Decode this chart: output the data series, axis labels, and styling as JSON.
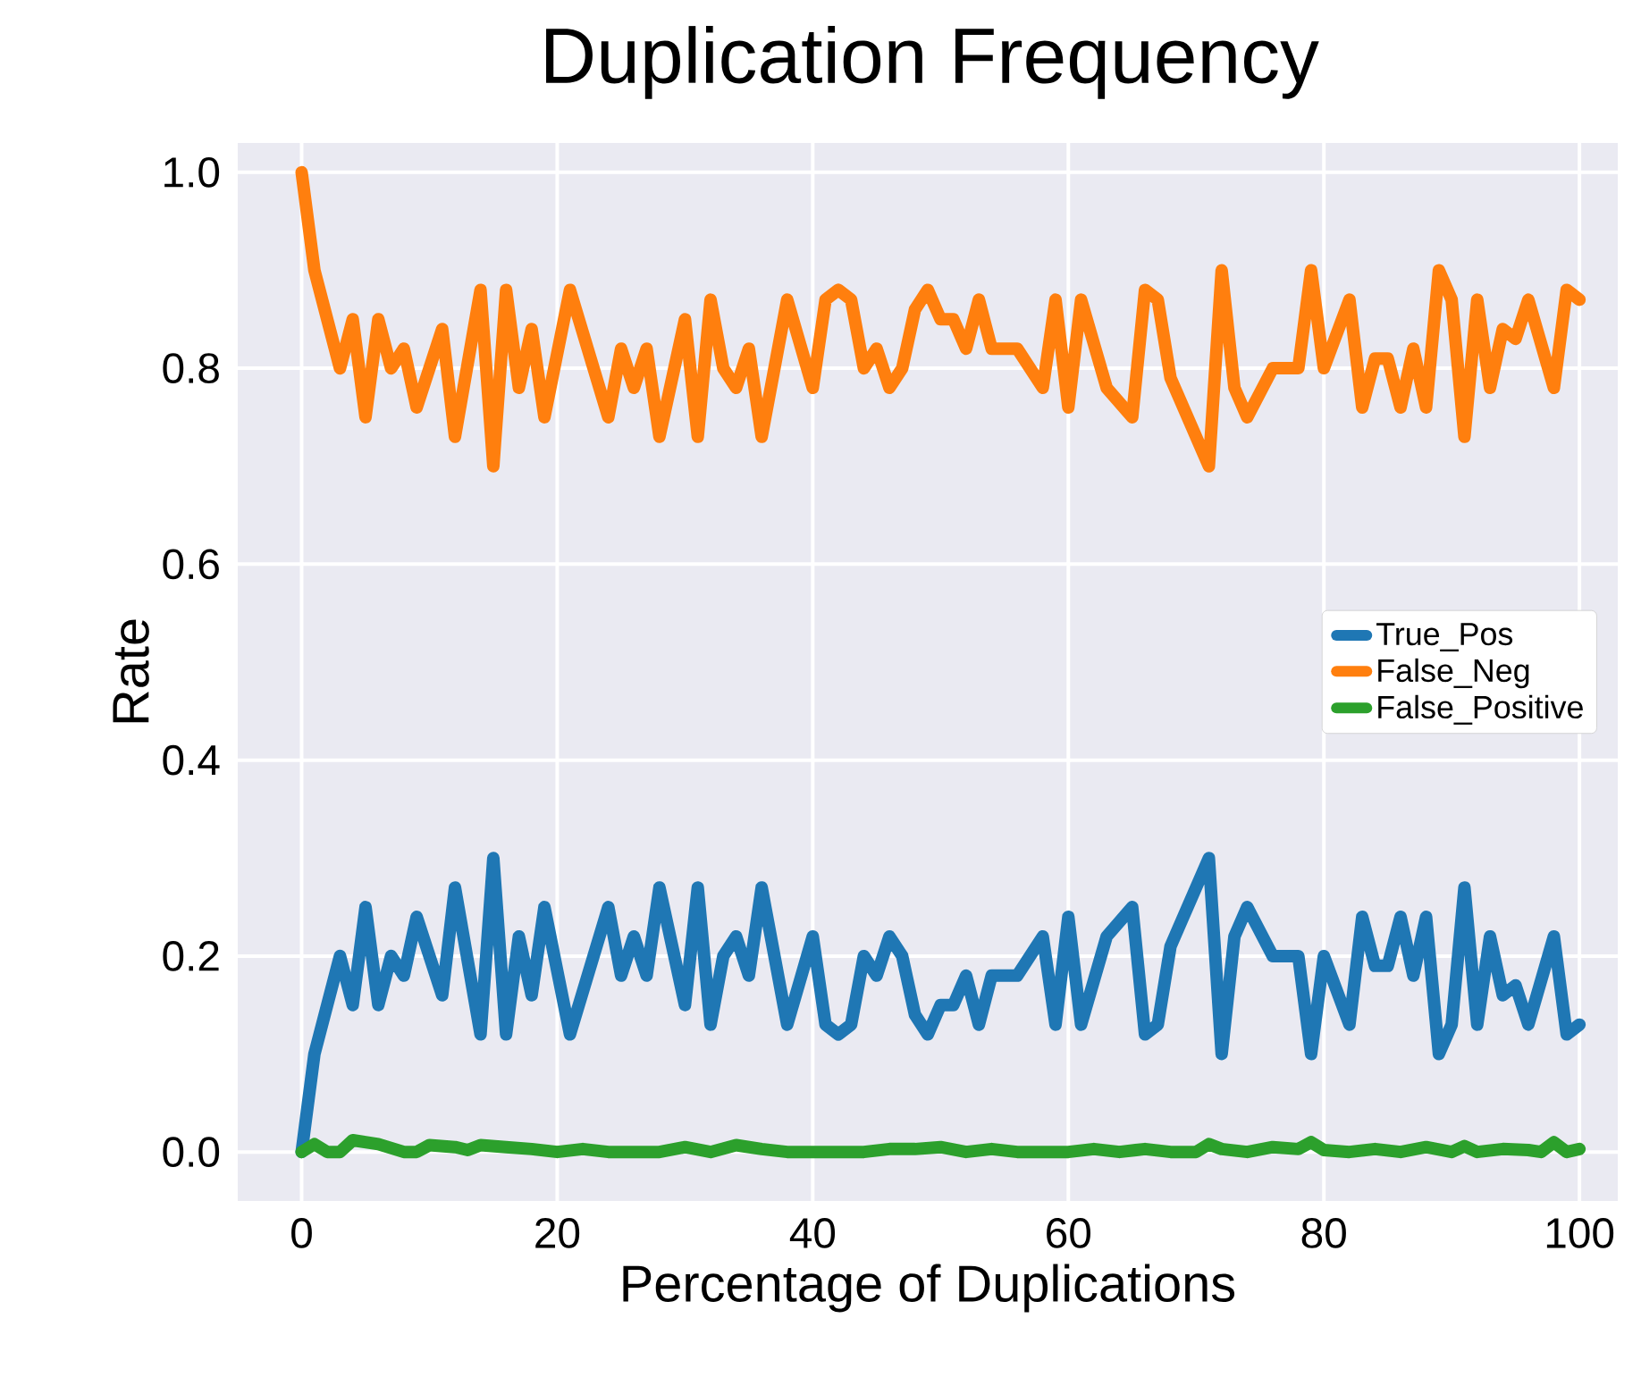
{
  "chart_data": {
    "type": "line",
    "title": "Duplication Frequency",
    "xlabel": "Percentage of Duplications",
    "ylabel": "Rate",
    "xlim": [
      -5,
      103
    ],
    "ylim": [
      -0.05,
      1.03
    ],
    "xticks": [
      0,
      20,
      40,
      60,
      80,
      100
    ],
    "yticks": [
      {
        "value": 0,
        "label": "0.0"
      },
      {
        "value": 0.2,
        "label": "0.2"
      },
      {
        "value": 0.4,
        "label": "0.4"
      },
      {
        "value": 0.6,
        "label": "0.6"
      },
      {
        "value": 0.8,
        "label": "0.8"
      },
      {
        "value": 1.0,
        "label": "1.0"
      }
    ],
    "grid": true,
    "legend": "center right",
    "line_style": "solid",
    "marker": "none",
    "series": [
      {
        "name": "True_Pos",
        "color": "#1f77b4",
        "x": [
          0,
          1,
          3,
          4,
          5,
          6,
          7,
          8,
          9,
          11,
          12,
          14,
          15,
          16,
          17,
          18,
          19,
          21,
          24,
          25,
          26,
          27,
          28,
          30,
          31,
          32,
          33,
          34,
          35,
          36,
          38,
          40,
          41,
          42,
          43,
          44,
          45,
          46,
          47,
          48,
          49,
          50,
          51,
          52,
          53,
          54,
          56,
          58,
          59,
          60,
          61,
          63,
          65,
          66,
          67,
          68,
          69,
          71,
          72,
          73,
          74,
          76,
          78,
          79,
          80,
          82,
          83,
          84,
          85,
          86,
          87,
          88,
          89,
          90,
          91,
          92,
          93,
          94,
          95,
          96,
          98,
          99,
          100
        ],
        "values": [
          0,
          0.1,
          0.2,
          0.15,
          0.25,
          0.15,
          0.2,
          0.18,
          0.24,
          0.16,
          0.27,
          0.12,
          0.3,
          0.12,
          0.22,
          0.16,
          0.25,
          0.12,
          0.25,
          0.18,
          0.22,
          0.18,
          0.27,
          0.15,
          0.27,
          0.13,
          0.2,
          0.22,
          0.18,
          0.27,
          0.13,
          0.22,
          0.13,
          0.12,
          0.13,
          0.2,
          0.18,
          0.22,
          0.2,
          0.14,
          0.12,
          0.15,
          0.15,
          0.18,
          0.13,
          0.18,
          0.18,
          0.22,
          0.13,
          0.24,
          0.13,
          0.22,
          0.25,
          0.12,
          0.13,
          0.21,
          0.24,
          0.3,
          0.1,
          0.22,
          0.25,
          0.2,
          0.2,
          0.1,
          0.2,
          0.13,
          0.24,
          0.19,
          0.19,
          0.24,
          0.18,
          0.24,
          0.1,
          0.13,
          0.27,
          0.13,
          0.22,
          0.16,
          0.17,
          0.13,
          0.22,
          0.12,
          0.13
        ]
      },
      {
        "name": "False_Neg",
        "color": "#ff7f0e",
        "x": [
          0,
          1,
          3,
          4,
          5,
          6,
          7,
          8,
          9,
          11,
          12,
          14,
          15,
          16,
          17,
          18,
          19,
          21,
          24,
          25,
          26,
          27,
          28,
          30,
          31,
          32,
          33,
          34,
          35,
          36,
          38,
          40,
          41,
          42,
          43,
          44,
          45,
          46,
          47,
          48,
          49,
          50,
          51,
          52,
          53,
          54,
          56,
          58,
          59,
          60,
          61,
          63,
          65,
          66,
          67,
          68,
          69,
          71,
          72,
          73,
          74,
          76,
          78,
          79,
          80,
          82,
          83,
          84,
          85,
          86,
          87,
          88,
          89,
          90,
          91,
          92,
          93,
          94,
          95,
          96,
          98,
          99,
          100
        ],
        "values": [
          1,
          0.9,
          0.8,
          0.85,
          0.75,
          0.85,
          0.8,
          0.82,
          0.76,
          0.84,
          0.73,
          0.88,
          0.7,
          0.88,
          0.78,
          0.84,
          0.75,
          0.88,
          0.75,
          0.82,
          0.78,
          0.82,
          0.73,
          0.85,
          0.73,
          0.87,
          0.8,
          0.78,
          0.82,
          0.73,
          0.87,
          0.78,
          0.87,
          0.88,
          0.87,
          0.8,
          0.82,
          0.78,
          0.8,
          0.86,
          0.88,
          0.85,
          0.85,
          0.82,
          0.87,
          0.82,
          0.82,
          0.78,
          0.87,
          0.76,
          0.87,
          0.78,
          0.75,
          0.88,
          0.87,
          0.79,
          0.76,
          0.7,
          0.9,
          0.78,
          0.75,
          0.8,
          0.8,
          0.9,
          0.8,
          0.87,
          0.76,
          0.81,
          0.81,
          0.76,
          0.82,
          0.76,
          0.9,
          0.87,
          0.73,
          0.87,
          0.78,
          0.84,
          0.83,
          0.87,
          0.78,
          0.88,
          0.87
        ]
      },
      {
        "name": "False_Positive",
        "color": "#2ca02c",
        "x": [
          0,
          1,
          2,
          3,
          4,
          6,
          8,
          9,
          10,
          12,
          13,
          14,
          16,
          18,
          20,
          22,
          24,
          26,
          28,
          30,
          32,
          34,
          36,
          38,
          40,
          42,
          44,
          46,
          48,
          50,
          52,
          54,
          56,
          58,
          60,
          62,
          64,
          66,
          68,
          70,
          71,
          72,
          74,
          76,
          78,
          79,
          80,
          82,
          84,
          86,
          88,
          90,
          91,
          92,
          94,
          96,
          97,
          98,
          99,
          100
        ],
        "values": [
          0,
          0.008,
          0,
          0,
          0.012,
          0.008,
          0,
          0,
          0.007,
          0.005,
          0.002,
          0.007,
          0.005,
          0.003,
          0,
          0.003,
          0,
          0,
          0,
          0.005,
          0,
          0.007,
          0.003,
          0,
          0,
          0,
          0,
          0.003,
          0.003,
          0.005,
          0,
          0.003,
          0,
          0,
          0,
          0.003,
          0,
          0.003,
          0,
          0,
          0.008,
          0.003,
          0,
          0.005,
          0.003,
          0.01,
          0.002,
          0,
          0.003,
          0,
          0.005,
          0,
          0.006,
          0,
          0.003,
          0.002,
          0,
          0.01,
          0,
          0.003
        ]
      }
    ]
  }
}
